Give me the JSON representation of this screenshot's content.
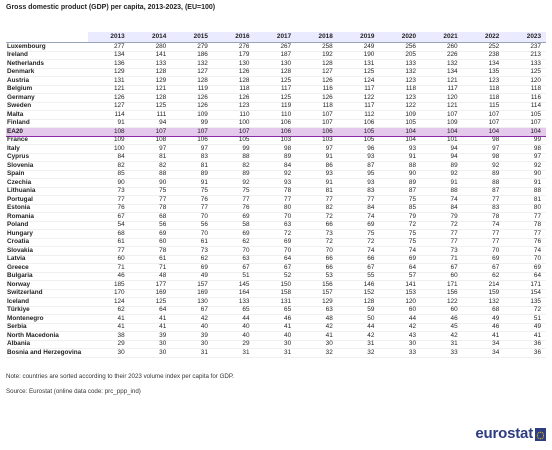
{
  "title": "Gross domestic product (GDP) per capita, 2013-2023, (EU=100)",
  "years": [
    "2013",
    "2014",
    "2015",
    "2016",
    "2017",
    "2018",
    "2019",
    "2020",
    "2021",
    "2022",
    "2023"
  ],
  "rows": [
    {
      "name": "Luxembourg",
      "values": [
        "277",
        "280",
        "279",
        "276",
        "267",
        "258",
        "249",
        "256",
        "260",
        "252",
        "237"
      ]
    },
    {
      "name": "Ireland",
      "values": [
        "134",
        "141",
        "186",
        "179",
        "187",
        "192",
        "190",
        "205",
        "226",
        "238",
        "213"
      ]
    },
    {
      "name": "Netherlands",
      "values": [
        "136",
        "133",
        "132",
        "130",
        "130",
        "128",
        "131",
        "133",
        "132",
        "134",
        "133"
      ]
    },
    {
      "name": "Denmark",
      "values": [
        "129",
        "128",
        "127",
        "126",
        "128",
        "127",
        "125",
        "132",
        "134",
        "135",
        "125"
      ]
    },
    {
      "name": "Austria",
      "values": [
        "131",
        "129",
        "128",
        "128",
        "125",
        "126",
        "124",
        "123",
        "121",
        "123",
        "120"
      ]
    },
    {
      "name": "Belgium",
      "values": [
        "121",
        "121",
        "119",
        "118",
        "117",
        "116",
        "117",
        "118",
        "117",
        "118",
        "118"
      ]
    },
    {
      "name": "Germany",
      "values": [
        "126",
        "128",
        "126",
        "126",
        "125",
        "126",
        "122",
        "123",
        "120",
        "118",
        "116"
      ]
    },
    {
      "name": "Sweden",
      "values": [
        "127",
        "125",
        "126",
        "123",
        "119",
        "118",
        "117",
        "122",
        "121",
        "115",
        "114"
      ]
    },
    {
      "name": "Malta",
      "values": [
        "114",
        "111",
        "109",
        "110",
        "110",
        "107",
        "112",
        "109",
        "107",
        "107",
        "105"
      ]
    },
    {
      "name": "Finland",
      "values": [
        "91",
        "94",
        "99",
        "100",
        "106",
        "107",
        "106",
        "105",
        "109",
        "107",
        "107"
      ]
    },
    {
      "name": "EA20",
      "values": [
        "108",
        "107",
        "107",
        "107",
        "106",
        "106",
        "105",
        "104",
        "104",
        "104",
        "104"
      ],
      "highlight": true
    },
    {
      "name": "France",
      "values": [
        "109",
        "108",
        "106",
        "105",
        "103",
        "103",
        "105",
        "104",
        "101",
        "98",
        "99"
      ]
    },
    {
      "name": "Italy",
      "values": [
        "100",
        "97",
        "97",
        "99",
        "98",
        "97",
        "96",
        "93",
        "94",
        "97",
        "98"
      ]
    },
    {
      "name": "Cyprus",
      "values": [
        "84",
        "81",
        "83",
        "88",
        "89",
        "91",
        "93",
        "91",
        "94",
        "98",
        "97"
      ]
    },
    {
      "name": "Slovenia",
      "values": [
        "82",
        "82",
        "81",
        "82",
        "84",
        "86",
        "87",
        "88",
        "89",
        "92",
        "92"
      ]
    },
    {
      "name": "Spain",
      "values": [
        "85",
        "88",
        "89",
        "89",
        "92",
        "93",
        "95",
        "90",
        "92",
        "89",
        "90"
      ]
    },
    {
      "name": "Czechia",
      "values": [
        "90",
        "90",
        "91",
        "92",
        "93",
        "91",
        "93",
        "89",
        "91",
        "88",
        "91"
      ]
    },
    {
      "name": "Lithuania",
      "values": [
        "73",
        "75",
        "75",
        "75",
        "78",
        "81",
        "83",
        "87",
        "88",
        "87",
        "88"
      ]
    },
    {
      "name": "Portugal",
      "values": [
        "77",
        "77",
        "76",
        "77",
        "77",
        "77",
        "77",
        "75",
        "74",
        "77",
        "81"
      ]
    },
    {
      "name": "Estonia",
      "values": [
        "76",
        "78",
        "77",
        "76",
        "80",
        "82",
        "84",
        "85",
        "84",
        "83",
        "80"
      ]
    },
    {
      "name": "Romania",
      "values": [
        "67",
        "68",
        "70",
        "69",
        "70",
        "72",
        "74",
        "79",
        "79",
        "78",
        "77"
      ]
    },
    {
      "name": "Poland",
      "values": [
        "54",
        "56",
        "56",
        "58",
        "63",
        "66",
        "69",
        "72",
        "72",
        "74",
        "78"
      ]
    },
    {
      "name": "Hungary",
      "values": [
        "68",
        "69",
        "70",
        "69",
        "72",
        "73",
        "75",
        "75",
        "77",
        "77",
        "77"
      ]
    },
    {
      "name": "Croatia",
      "values": [
        "61",
        "60",
        "61",
        "62",
        "69",
        "72",
        "72",
        "75",
        "77",
        "77",
        "76"
      ]
    },
    {
      "name": "Slovakia",
      "values": [
        "77",
        "78",
        "73",
        "70",
        "70",
        "70",
        "74",
        "74",
        "73",
        "70",
        "74"
      ]
    },
    {
      "name": "Latvia",
      "values": [
        "60",
        "61",
        "62",
        "63",
        "64",
        "66",
        "66",
        "69",
        "71",
        "69",
        "70"
      ]
    },
    {
      "name": "Greece",
      "values": [
        "71",
        "71",
        "69",
        "67",
        "67",
        "66",
        "67",
        "64",
        "67",
        "67",
        "69"
      ]
    },
    {
      "name": "Bulgaria",
      "values": [
        "46",
        "48",
        "49",
        "51",
        "52",
        "53",
        "55",
        "57",
        "60",
        "62",
        "64"
      ]
    },
    {
      "name": "Norway",
      "values": [
        "185",
        "177",
        "157",
        "145",
        "150",
        "156",
        "146",
        "141",
        "171",
        "214",
        "171"
      ],
      "sep": true
    },
    {
      "name": "Switzerland",
      "values": [
        "170",
        "169",
        "169",
        "164",
        "158",
        "157",
        "152",
        "153",
        "156",
        "159",
        "154"
      ]
    },
    {
      "name": "Iceland",
      "values": [
        "124",
        "125",
        "130",
        "133",
        "131",
        "129",
        "128",
        "120",
        "122",
        "132",
        "135"
      ]
    },
    {
      "name": "Türkiye",
      "values": [
        "62",
        "64",
        "67",
        "65",
        "65",
        "63",
        "59",
        "60",
        "60",
        "68",
        "72"
      ],
      "sep": true
    },
    {
      "name": "Montenegro",
      "values": [
        "41",
        "41",
        "42",
        "44",
        "46",
        "48",
        "50",
        "44",
        "46",
        "49",
        "51"
      ]
    },
    {
      "name": "Serbia",
      "values": [
        "41",
        "41",
        "40",
        "40",
        "41",
        "42",
        "44",
        "42",
        "45",
        "46",
        "49"
      ]
    },
    {
      "name": "North Macedonia",
      "values": [
        "38",
        "39",
        "39",
        "40",
        "40",
        "41",
        "42",
        "43",
        "42",
        "41",
        "41"
      ]
    },
    {
      "name": "Albania",
      "values": [
        "29",
        "30",
        "30",
        "29",
        "30",
        "30",
        "31",
        "30",
        "31",
        "34",
        "36"
      ]
    },
    {
      "name": "Bosnia and Herzegovina",
      "values": [
        "30",
        "30",
        "31",
        "31",
        "31",
        "32",
        "32",
        "33",
        "33",
        "34",
        "36"
      ]
    }
  ],
  "note": "Note: countries are sorted according to their 2023 volume index per capita for GDP.",
  "source": "Source: Eurostat (online data code: prc_ppp_ind)",
  "logo_text": "eurostat"
}
